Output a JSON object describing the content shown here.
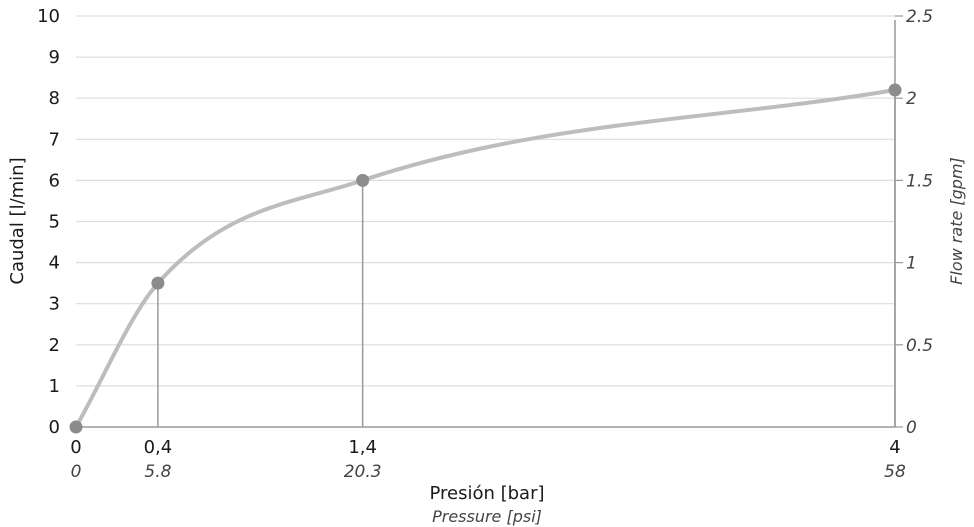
{
  "chart_data": {
    "type": "line",
    "xlabel": "Presión [bar]",
    "xlabel_secondary": "Pressure [psi]",
    "ylabel": "Caudal [l/min]",
    "ylabel_secondary": "Flow rate [gpm]",
    "xlim": [
      0,
      4
    ],
    "ylim": [
      0,
      10
    ],
    "ylim_secondary": [
      0,
      2.5
    ],
    "grid": true,
    "y_ticks": [
      "0",
      "1",
      "2",
      "3",
      "4",
      "5",
      "6",
      "7",
      "8",
      "9",
      "10"
    ],
    "y2_ticks": [
      "0",
      "0.5",
      "1",
      "1.5",
      "2",
      "2.5"
    ],
    "x_ticks": [
      {
        "bar": "0",
        "psi": "0",
        "value": 0
      },
      {
        "bar": "0,4",
        "psi": "5.8",
        "value": 0.4
      },
      {
        "bar": "1,4",
        "psi": "20.3",
        "value": 1.4
      },
      {
        "bar": "4",
        "psi": "58",
        "value": 4
      }
    ],
    "series": [
      {
        "points": [
          {
            "x": 0,
            "y": 0
          },
          {
            "x": 0.4,
            "y": 3.5
          },
          {
            "x": 1.4,
            "y": 6.0
          },
          {
            "x": 4,
            "y": 8.2
          }
        ]
      }
    ],
    "colors": {
      "line": "#bdbdbd",
      "marker": "#8c8c8c",
      "grid": "#dddddd",
      "axis": "#9a9a9a",
      "drop_line": "#9a9a9a"
    }
  }
}
